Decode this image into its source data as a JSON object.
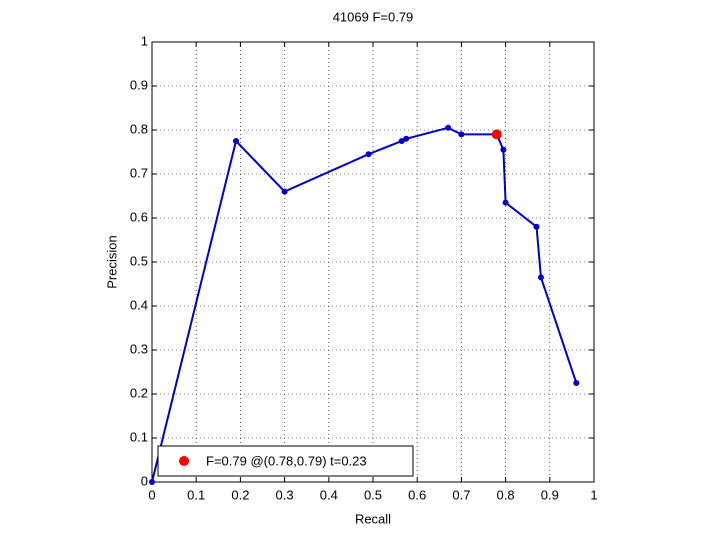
{
  "chart_data": {
    "type": "line",
    "title": "41069 F=0.79",
    "xlabel": "Recall",
    "ylabel": "Precision",
    "xlim": [
      0,
      1
    ],
    "ylim": [
      0,
      1
    ],
    "xticks": [
      0,
      0.1,
      0.2,
      0.3,
      0.4,
      0.5,
      0.6,
      0.7,
      0.8,
      0.9,
      1
    ],
    "yticks": [
      0,
      0.1,
      0.2,
      0.3,
      0.4,
      0.5,
      0.6,
      0.7,
      0.8,
      0.9,
      1
    ],
    "grid": true,
    "legend": "lower left",
    "series": [
      {
        "color": "#0000cc",
        "x": [
          0,
          0.19,
          0.3,
          0.49,
          0.565,
          0.575,
          0.67,
          0.7,
          0.78,
          0.795,
          0.8,
          0.87,
          0.88,
          0.96
        ],
        "values": [
          0,
          0.775,
          0.66,
          0.745,
          0.775,
          0.78,
          0.805,
          0.79,
          0.79,
          0.755,
          0.635,
          0.58,
          0.465,
          0.225
        ]
      },
      {
        "name": "F=0.79 @(0.78,0.79) t=0.23",
        "color": "#ff0000",
        "x": [
          0.78
        ],
        "values": [
          0.79
        ]
      }
    ]
  }
}
